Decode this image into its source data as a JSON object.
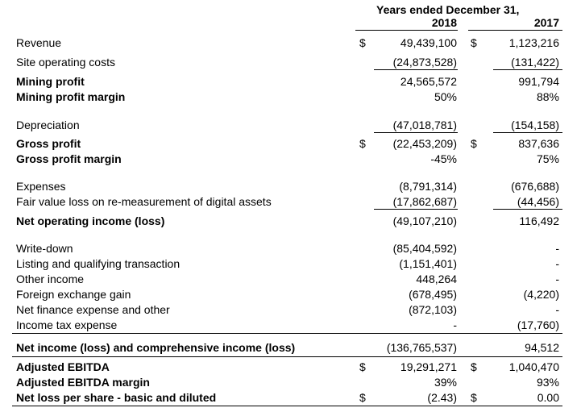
{
  "header": {
    "period": "Years ended December 31,",
    "col_2018": "2018",
    "col_2017": "2017"
  },
  "currency_symbol": "$",
  "rows": [
    {
      "label": "Revenue",
      "v2018": "49,439,100",
      "v2017": "1,123,216"
    },
    {
      "label": "Site operating costs",
      "v2018": "(24,873,528)",
      "v2017": "(131,422)"
    },
    {
      "label": "Mining profit",
      "v2018": "24,565,572",
      "v2017": "991,794"
    },
    {
      "label": "Mining profit margin",
      "v2018": "50%",
      "v2017": "88%"
    },
    {
      "label": "Depreciation",
      "v2018": "(47,018,781)",
      "v2017": "(154,158)"
    },
    {
      "label": "Gross profit",
      "v2018": "(22,453,209)",
      "v2017": "837,636"
    },
    {
      "label": "Gross profit margin",
      "v2018": "-45%",
      "v2017": "75%"
    },
    {
      "label": "Expenses",
      "v2018": "(8,791,314)",
      "v2017": "(676,688)"
    },
    {
      "label": "Fair value loss on re-measurement of digital assets",
      "v2018": "(17,862,687)",
      "v2017": "(44,456)"
    },
    {
      "label": "Net operating income (loss)",
      "v2018": "(49,107,210)",
      "v2017": "116,492"
    },
    {
      "label": "Write-down",
      "v2018": "(85,404,592)",
      "v2017": "-"
    },
    {
      "label": "Listing and qualifying transaction",
      "v2018": "(1,151,401)",
      "v2017": "-"
    },
    {
      "label": "Other income",
      "v2018": "448,264",
      "v2017": "-"
    },
    {
      "label": "Foreign exchange gain",
      "v2018": "(678,495)",
      "v2017": "(4,220)"
    },
    {
      "label": "Net finance expense and other",
      "v2018": "(872,103)",
      "v2017": "-"
    },
    {
      "label": "Income tax expense",
      "v2018": "-",
      "v2017": "(17,760)"
    },
    {
      "label": "Net income (loss) and comprehensive income (loss)",
      "v2018": "(136,765,537)",
      "v2017": "94,512"
    },
    {
      "label": "Adjusted EBITDA",
      "v2018": "19,291,271",
      "v2017": "1,040,470"
    },
    {
      "label": "Adjusted EBITDA margin",
      "v2018": "39%",
      "v2017": "93%"
    },
    {
      "label": "Net loss per share - basic and diluted",
      "v2018": "(2.43)",
      "v2017": "0.00"
    }
  ]
}
